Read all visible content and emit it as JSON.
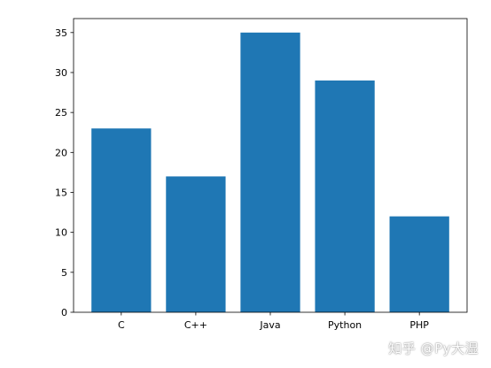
{
  "chart_data": {
    "type": "bar",
    "categories": [
      "C",
      "C++",
      "Java",
      "Python",
      "PHP"
    ],
    "values": [
      23,
      17,
      35,
      29,
      12
    ],
    "title": "",
    "xlabel": "",
    "ylabel": "",
    "ylim": [
      0,
      36.75
    ],
    "yticks": [
      0,
      5,
      10,
      15,
      20,
      25,
      30,
      35
    ],
    "bar_color": "#1f77b4",
    "grid": false,
    "legend": "none"
  },
  "watermark": {
    "text": "知乎 @Py大湿"
  }
}
